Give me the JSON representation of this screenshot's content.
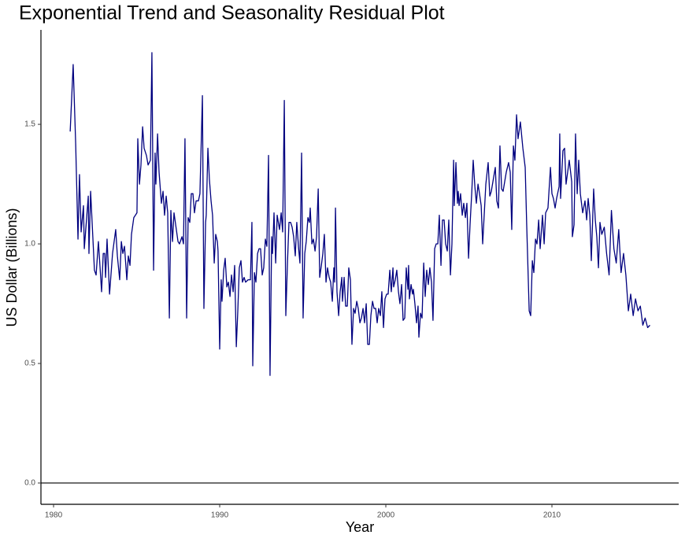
{
  "chart_data": {
    "type": "line",
    "title": "Exponential Trend and Seasonality Residual Plot",
    "x_label": "Year",
    "y_label": "US Dollar (Billions)",
    "color": "#00007f",
    "xlim": [
      1979.24,
      2017.63
    ],
    "ylim": [
      -0.089,
      1.895
    ],
    "xticks": [
      1980,
      1990,
      2000,
      2010
    ],
    "yticks": [
      {
        "value": 0,
        "label": "0.0"
      },
      0.5,
      {
        "value": 1,
        "label": "1.0"
      },
      1.5
    ],
    "reference_line": 0,
    "x": [
      1981.0,
      1981.18,
      1981.33,
      1981.47,
      1981.56,
      1981.66,
      1981.8,
      1981.85,
      1982.09,
      1982.13,
      1982.23,
      1982.46,
      1982.56,
      1982.7,
      1982.89,
      1982.99,
      1983.08,
      1983.13,
      1983.22,
      1983.37,
      1983.55,
      1983.74,
      1983.84,
      1983.98,
      1984.08,
      1984.17,
      1984.27,
      1984.41,
      1984.5,
      1984.6,
      1984.69,
      1984.83,
      1985.02,
      1985.07,
      1985.17,
      1985.26,
      1985.36,
      1985.45,
      1985.59,
      1985.69,
      1985.83,
      1985.92,
      1986.02,
      1986.11,
      1986.16,
      1986.26,
      1986.35,
      1986.49,
      1986.59,
      1986.68,
      1986.78,
      1986.87,
      1986.97,
      1987.06,
      1987.16,
      1987.25,
      1987.35,
      1987.49,
      1987.58,
      1987.73,
      1987.82,
      1987.91,
      1988.01,
      1988.1,
      1988.2,
      1988.29,
      1988.39,
      1988.48,
      1988.58,
      1988.72,
      1988.81,
      1988.96,
      1989.05,
      1989.15,
      1989.19,
      1989.29,
      1989.38,
      1989.48,
      1989.57,
      1989.67,
      1989.76,
      1989.86,
      1989.9,
      1990.0,
      1990.09,
      1990.14,
      1990.24,
      1990.33,
      1990.43,
      1990.52,
      1990.62,
      1990.71,
      1990.81,
      1990.9,
      1991.0,
      1991.09,
      1991.18,
      1991.28,
      1991.37,
      1991.47,
      1991.56,
      1991.71,
      1991.85,
      1991.94,
      1991.99,
      1992.09,
      1992.18,
      1992.28,
      1992.37,
      1992.46,
      1992.56,
      1992.65,
      1992.75,
      1992.84,
      1992.94,
      1993.03,
      1993.13,
      1993.18,
      1993.27,
      1993.37,
      1993.46,
      1993.6,
      1993.7,
      1993.79,
      1993.89,
      1993.98,
      1994.08,
      1994.17,
      1994.27,
      1994.36,
      1994.45,
      1994.55,
      1994.64,
      1994.74,
      1994.83,
      1994.93,
      1995.02,
      1995.12,
      1995.21,
      1995.31,
      1995.4,
      1995.45,
      1995.55,
      1995.64,
      1995.74,
      1995.83,
      1995.93,
      1996.02,
      1996.12,
      1996.21,
      1996.3,
      1996.4,
      1996.49,
      1996.59,
      1996.68,
      1996.78,
      1996.87,
      1996.92,
      1996.97,
      1997.06,
      1997.16,
      1997.25,
      1997.35,
      1997.39,
      1997.49,
      1997.58,
      1997.68,
      1997.77,
      1997.87,
      1997.96,
      1998.06,
      1998.15,
      1998.25,
      1998.34,
      1998.44,
      1998.53,
      1998.63,
      1998.72,
      1998.82,
      1998.91,
      1999.01,
      1999.1,
      1999.2,
      1999.29,
      1999.39,
      1999.48,
      1999.57,
      1999.67,
      1999.76,
      1999.86,
      1999.95,
      2000.05,
      2000.14,
      2000.24,
      2000.33,
      2000.43,
      2000.47,
      2000.57,
      2000.66,
      2000.76,
      2000.85,
      2000.95,
      2001.04,
      2001.14,
      2001.23,
      2001.33,
      2001.37,
      2001.42,
      2001.52,
      2001.61,
      2001.66,
      2001.75,
      2001.85,
      2001.94,
      2001.99,
      2002.09,
      2002.18,
      2002.28,
      2002.37,
      2002.46,
      2002.56,
      2002.65,
      2002.75,
      2002.84,
      2002.94,
      2003.03,
      2003.13,
      2003.22,
      2003.32,
      2003.41,
      2003.51,
      2003.6,
      2003.7,
      2003.79,
      2003.89,
      2003.98,
      2004.08,
      2004.12,
      2004.22,
      2004.31,
      2004.36,
      2004.41,
      2004.5,
      2004.6,
      2004.69,
      2004.79,
      2004.88,
      2004.98,
      2005.07,
      2005.17,
      2005.26,
      2005.36,
      2005.45,
      2005.55,
      2005.64,
      2005.74,
      2005.83,
      2006.02,
      2006.16,
      2006.26,
      2006.35,
      2006.59,
      2006.68,
      2006.78,
      2006.87,
      2006.97,
      2007.06,
      2007.25,
      2007.39,
      2007.49,
      2007.58,
      2007.68,
      2007.77,
      2007.87,
      2007.96,
      2008.1,
      2008.25,
      2008.39,
      2008.48,
      2008.63,
      2008.72,
      2008.82,
      2008.91,
      2009.01,
      2009.1,
      2009.2,
      2009.29,
      2009.43,
      2009.53,
      2009.62,
      2009.76,
      2009.91,
      2010.0,
      2010.09,
      2010.19,
      2010.28,
      2010.43,
      2010.47,
      2010.52,
      2010.66,
      2010.76,
      2010.85,
      2011.04,
      2011.19,
      2011.23,
      2011.33,
      2011.42,
      2011.52,
      2011.61,
      2011.71,
      2011.85,
      2011.99,
      2012.09,
      2012.18,
      2012.28,
      2012.37,
      2012.51,
      2012.61,
      2012.7,
      2012.8,
      2012.89,
      2013.0,
      2013.15,
      2013.29,
      2013.44,
      2013.58,
      2013.73,
      2013.87,
      2014.02,
      2014.16,
      2014.31,
      2014.45,
      2014.6,
      2014.74,
      2014.89,
      2015.03,
      2015.18,
      2015.32,
      2015.47,
      2015.61,
      2015.76,
      2015.9
    ],
    "values": [
      1.47,
      1.75,
      1.42,
      1.02,
      1.29,
      1.05,
      1.16,
      0.98,
      1.2,
      0.96,
      1.22,
      0.89,
      0.87,
      1.01,
      0.8,
      0.96,
      0.96,
      0.86,
      1.02,
      0.79,
      0.96,
      1.06,
      0.95,
      0.85,
      1.01,
      0.96,
      0.99,
      0.85,
      0.95,
      0.91,
      1.04,
      1.11,
      1.13,
      1.44,
      1.25,
      1.33,
      1.49,
      1.4,
      1.37,
      1.33,
      1.35,
      1.8,
      0.89,
      1.38,
      1.25,
      1.46,
      1.3,
      1.17,
      1.22,
      1.12,
      1.2,
      1.13,
      0.69,
      1.14,
      1.01,
      1.13,
      1.08,
      1.01,
      1.0,
      1.03,
      1.0,
      1.44,
      0.69,
      1.11,
      1.09,
      1.21,
      1.21,
      1.13,
      1.18,
      1.18,
      1.21,
      1.62,
      0.73,
      1.09,
      1.12,
      1.4,
      1.27,
      1.18,
      1.12,
      0.92,
      1.04,
      1.01,
      0.97,
      0.56,
      0.85,
      0.76,
      0.89,
      0.94,
      0.82,
      0.84,
      0.78,
      0.87,
      0.8,
      0.91,
      0.57,
      0.72,
      0.9,
      0.93,
      0.84,
      0.86,
      0.84,
      0.85,
      0.85,
      1.09,
      0.49,
      0.88,
      0.84,
      0.96,
      0.98,
      0.98,
      0.87,
      0.9,
      1.02,
      0.99,
      1.37,
      0.45,
      1.03,
      0.96,
      1.13,
      0.92,
      1.12,
      1.06,
      1.13,
      1.05,
      1.6,
      0.7,
      0.92,
      1.09,
      1.09,
      1.07,
      1.03,
      0.95,
      1.09,
      0.99,
      0.92,
      1.38,
      0.69,
      0.96,
      1.01,
      1.11,
      1.09,
      1.15,
      1.0,
      1.02,
      0.97,
      1.03,
      1.23,
      0.86,
      0.91,
      0.96,
      1.04,
      0.84,
      0.9,
      0.86,
      0.84,
      0.76,
      0.9,
      0.84,
      1.15,
      0.8,
      0.7,
      0.8,
      0.86,
      0.76,
      0.86,
      0.74,
      0.74,
      0.9,
      0.85,
      0.58,
      0.73,
      0.71,
      0.76,
      0.73,
      0.67,
      0.69,
      0.73,
      0.67,
      0.75,
      0.58,
      0.58,
      0.7,
      0.76,
      0.73,
      0.73,
      0.67,
      0.73,
      0.7,
      0.8,
      0.65,
      0.77,
      0.79,
      0.79,
      0.89,
      0.8,
      0.9,
      0.82,
      0.85,
      0.89,
      0.8,
      0.75,
      0.83,
      0.68,
      0.69,
      0.9,
      0.81,
      0.91,
      0.77,
      0.83,
      0.79,
      0.81,
      0.75,
      0.67,
      0.74,
      0.61,
      0.71,
      0.69,
      0.92,
      0.78,
      0.89,
      0.83,
      0.9,
      0.84,
      0.68,
      0.98,
      1.0,
      1.0,
      1.12,
      0.91,
      1.1,
      1.1,
      1.0,
      0.97,
      1.1,
      0.87,
      1.0,
      1.35,
      1.16,
      1.34,
      1.17,
      1.22,
      1.16,
      1.21,
      1.12,
      1.17,
      1.11,
      1.17,
      0.94,
      1.08,
      1.21,
      1.35,
      1.24,
      1.17,
      1.25,
      1.21,
      1.16,
      1.0,
      1.25,
      1.34,
      1.2,
      1.22,
      1.32,
      1.18,
      1.15,
      1.41,
      1.23,
      1.22,
      1.3,
      1.34,
      1.3,
      1.06,
      1.41,
      1.35,
      1.54,
      1.44,
      1.51,
      1.4,
      1.32,
      1.08,
      0.72,
      0.7,
      0.93,
      0.88,
      1.02,
      1.0,
      1.1,
      0.98,
      1.12,
      1.0,
      1.13,
      1.15,
      1.32,
      1.21,
      1.19,
      1.15,
      1.19,
      1.24,
      1.46,
      1.19,
      1.39,
      1.4,
      1.25,
      1.35,
      1.26,
      1.03,
      1.08,
      1.46,
      1.21,
      1.35,
      1.21,
      1.13,
      1.18,
      1.1,
      1.19,
      1.12,
      0.93,
      1.23,
      1.1,
      1.03,
      0.9,
      1.09,
      1.04,
      1.07,
      0.96,
      0.87,
      1.14,
      0.98,
      0.92,
      1.06,
      0.88,
      0.96,
      0.87,
      0.72,
      0.79,
      0.7,
      0.77,
      0.72,
      0.74,
      0.66,
      0.69,
      0.65,
      0.66
    ]
  }
}
